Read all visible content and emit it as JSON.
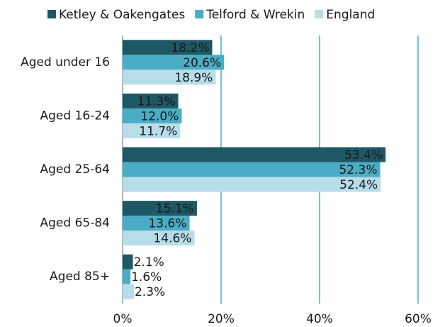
{
  "chart_data": {
    "type": "barh",
    "categories": [
      "Aged under 16",
      "Aged 16-24",
      "Aged 25-64",
      "Aged 65-84",
      "Aged 85+"
    ],
    "series": [
      {
        "name": "Ketley & Oakengates",
        "color": "#1f5865",
        "values": [
          18.2,
          11.3,
          53.4,
          15.1,
          2.1
        ],
        "value_labels": [
          "18.2%",
          "11.3%",
          "53.4%",
          "15.1%",
          "2.1%"
        ]
      },
      {
        "name": "Telford & Wrekin",
        "color": "#4aacc5",
        "values": [
          20.6,
          12.0,
          52.3,
          13.6,
          1.6
        ],
        "value_labels": [
          "20.6%",
          "12.0%",
          "52.3%",
          "13.6%",
          "1.6%"
        ]
      },
      {
        "name": "England",
        "color": "#b7dde8",
        "values": [
          18.9,
          11.7,
          52.4,
          14.6,
          2.3
        ],
        "value_labels": [
          "18.9%",
          "11.7%",
          "52.4%",
          "14.6%",
          "2.3%"
        ]
      }
    ],
    "xlim": [
      0,
      60
    ],
    "xticks": [
      {
        "value": 0,
        "label": "0%"
      },
      {
        "value": 20,
        "label": "20%"
      },
      {
        "value": 40,
        "label": "40%"
      },
      {
        "value": 60,
        "label": "60%"
      }
    ],
    "grid": true,
    "legend": "top"
  }
}
